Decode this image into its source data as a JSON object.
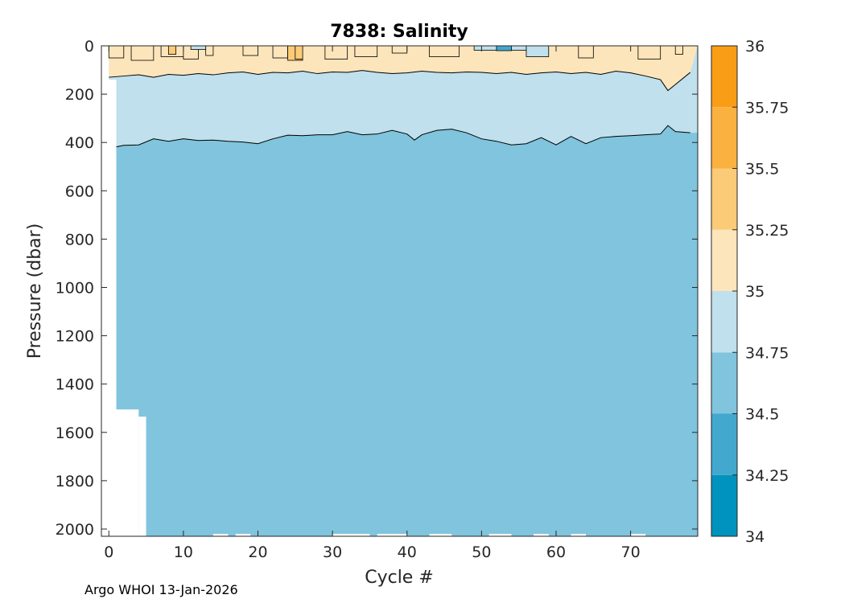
{
  "chart_data": {
    "type": "contour",
    "title": "7838:  Salinity",
    "xlabel": "Cycle #",
    "ylabel": "Pressure (dbar)",
    "xlim": [
      -1,
      79
    ],
    "ylim": [
      2030,
      0
    ],
    "xticks": [
      0,
      10,
      20,
      30,
      40,
      50,
      60,
      70
    ],
    "yticks": [
      0,
      200,
      400,
      600,
      800,
      1000,
      1200,
      1400,
      1600,
      1800,
      2000
    ],
    "colorbar": {
      "levels": [
        34,
        34.25,
        34.5,
        34.75,
        35,
        35.25,
        35.5,
        35.75,
        36
      ],
      "tick_labels": [
        "34",
        "34.25",
        "34.5",
        "34.75",
        "35",
        "35.25",
        "35.5",
        "35.75",
        "36"
      ],
      "colors": [
        "#0093bd",
        "#42a8cd",
        "#80c4dd",
        "#bfe0ec",
        "#fde5bb",
        "#fccb78",
        "#fbb140",
        "#fa9d16"
      ]
    },
    "contours": {
      "s35_depth_profile": {
        "cycles": [
          0,
          2,
          4,
          6,
          8,
          10,
          12,
          14,
          16,
          18,
          20,
          22,
          24,
          26,
          28,
          30,
          32,
          34,
          36,
          38,
          40,
          42,
          44,
          46,
          48,
          50,
          52,
          54,
          56,
          58,
          60,
          62,
          64,
          66,
          68,
          70,
          72,
          74,
          75,
          76,
          78
        ],
        "pressure": [
          130,
          125,
          120,
          130,
          118,
          122,
          115,
          120,
          112,
          108,
          118,
          110,
          112,
          105,
          115,
          108,
          110,
          102,
          110,
          115,
          112,
          105,
          110,
          112,
          108,
          110,
          115,
          110,
          118,
          112,
          108,
          115,
          110,
          118,
          105,
          112,
          125,
          140,
          185,
          160,
          110
        ]
      },
      "s3475_depth_profile": {
        "cycles": [
          0,
          1,
          2,
          4,
          6,
          8,
          10,
          12,
          14,
          16,
          18,
          20,
          22,
          24,
          26,
          28,
          30,
          32,
          34,
          36,
          38,
          40,
          41,
          42,
          44,
          46,
          48,
          50,
          52,
          54,
          56,
          58,
          60,
          62,
          64,
          66,
          68,
          70,
          72,
          74,
          75,
          76,
          78
        ],
        "pressure": [
          420,
          418,
          412,
          410,
          385,
          395,
          385,
          392,
          390,
          395,
          398,
          405,
          385,
          370,
          372,
          368,
          368,
          355,
          368,
          365,
          350,
          365,
          390,
          368,
          350,
          345,
          360,
          385,
          395,
          410,
          405,
          380,
          410,
          375,
          405,
          380,
          375,
          372,
          368,
          365,
          330,
          355,
          360
        ]
      }
    },
    "surface_features": "saltier water (35.25-35.75) patchy in upper ~60 dbar; fresher patches (<34.5) near cycles 50-60 at surface",
    "data_coverage": {
      "missing_regions": [
        {
          "cycles": [
            -1,
            1
          ],
          "pressure_from": 140
        },
        {
          "cycles": [
            1,
            4
          ],
          "pressure_from": 1505
        },
        {
          "cycles": [
            4,
            5
          ],
          "pressure_from": 1535
        }
      ]
    }
  },
  "footer": "Argo WHOI 13-Jan-2026"
}
